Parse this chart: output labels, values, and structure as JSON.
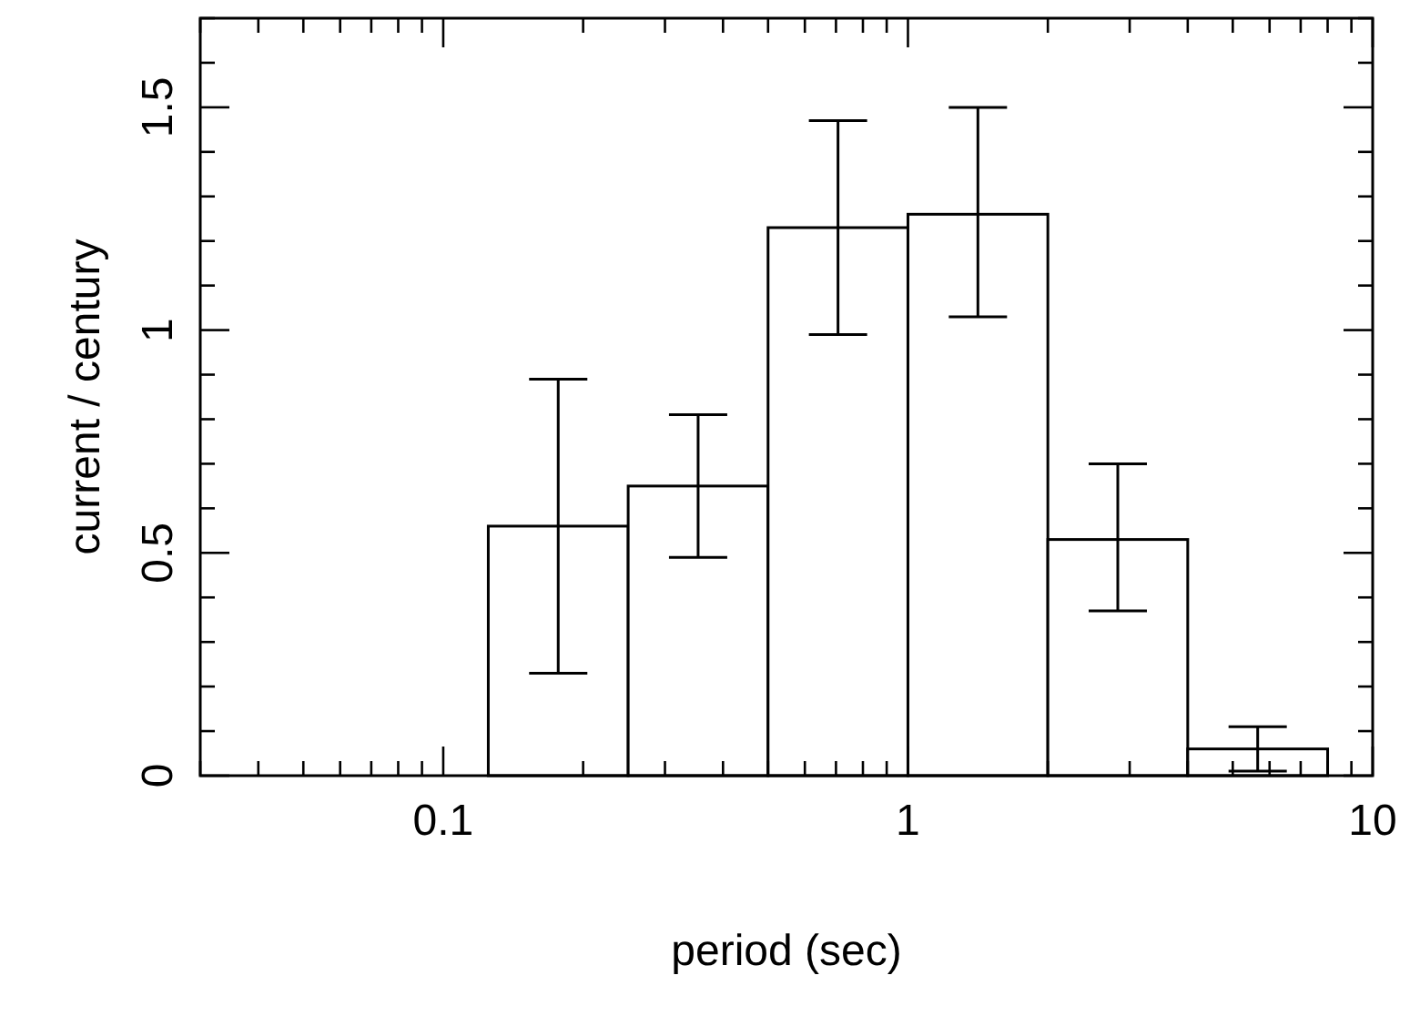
{
  "chart_data": {
    "type": "histogram",
    "xlabel": "period (sec)",
    "ylabel": "current / century",
    "bins": [
      0.125,
      0.25,
      0.5,
      1,
      2,
      4,
      8
    ],
    "values": [
      0.56,
      0.65,
      1.23,
      1.26,
      0.53,
      0.06
    ],
    "errors": [
      [
        0.23,
        0.89
      ],
      [
        0.49,
        0.81
      ],
      [
        0.99,
        1.47
      ],
      [
        1.03,
        1.5
      ],
      [
        0.37,
        0.7
      ],
      [
        0.01,
        0.11
      ]
    ],
    "color": "#ffffff",
    "log": "x",
    "xlim": [
      0.03,
      10
    ],
    "xticks": [
      {
        "value": 0.03,
        "label": null
      },
      {
        "value": 0.04,
        "label": null
      },
      {
        "value": 0.05,
        "label": null
      },
      {
        "value": 0.06,
        "label": null
      },
      {
        "value": 0.07,
        "label": null
      },
      {
        "value": 0.08,
        "label": null
      },
      {
        "value": 0.09,
        "label": null
      },
      0.1,
      {
        "value": 0.2,
        "label": null
      },
      {
        "value": 0.3,
        "label": null
      },
      {
        "value": 0.4,
        "label": null
      },
      {
        "value": 0.5,
        "label": null
      },
      {
        "value": 0.6,
        "label": null
      },
      {
        "value": 0.7,
        "label": null
      },
      {
        "value": 0.8,
        "label": null
      },
      {
        "value": 0.9,
        "label": null
      },
      1,
      {
        "value": 2,
        "label": null
      },
      {
        "value": 3,
        "label": null
      },
      {
        "value": 4,
        "label": null
      },
      {
        "value": 5,
        "label": null
      },
      {
        "value": 6,
        "label": null
      },
      {
        "value": 7,
        "label": null
      },
      {
        "value": 8,
        "label": null
      },
      {
        "value": 9,
        "label": null
      },
      10
    ],
    "ylim": [
      0,
      1.7
    ],
    "yticks": [
      0,
      {
        "value": 0.1,
        "label": null
      },
      {
        "value": 0.2,
        "label": null
      },
      {
        "value": 0.3,
        "label": null
      },
      {
        "value": 0.4,
        "label": null
      },
      0.5,
      {
        "value": 0.6,
        "label": null
      },
      {
        "value": 0.7,
        "label": null
      },
      {
        "value": 0.8,
        "label": null
      },
      {
        "value": 0.9,
        "label": null
      },
      1,
      {
        "value": 1.1,
        "label": null
      },
      {
        "value": 1.2,
        "label": null
      },
      {
        "value": 1.3,
        "label": null
      },
      {
        "value": 1.4,
        "label": null
      },
      1.5,
      {
        "value": 1.6,
        "label": null
      },
      {
        "value": 1.7,
        "label": null
      }
    ],
    "grid": false
  }
}
